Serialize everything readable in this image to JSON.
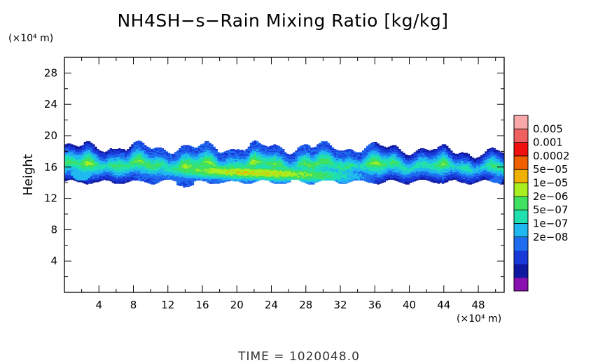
{
  "chart_data": {
    "type": "heatmap",
    "title": "NH4SH−s−Rain Mixing Ratio [kg/kg]",
    "ylabel": "Height",
    "xlabel": "",
    "x_unit": "(×10⁴ m)",
    "y_unit": "(×10⁴ m)",
    "xlim": [
      0,
      51
    ],
    "ylim": [
      0,
      30
    ],
    "x_ticks": [
      4,
      8,
      12,
      16,
      20,
      24,
      28,
      32,
      36,
      40,
      44,
      48
    ],
    "y_ticks": [
      4,
      8,
      12,
      16,
      20,
      24,
      28
    ],
    "x_tick_labels": [
      "4",
      "8",
      "12",
      "16",
      "20",
      "24",
      "28",
      "32",
      "36",
      "40",
      "44",
      "48"
    ],
    "y_tick_labels": [
      "4",
      "8",
      "12",
      "16",
      "20",
      "24",
      "28"
    ],
    "colorbar": {
      "labels": [
        "0.005",
        "0.001",
        "0.0002",
        "5e−05",
        "1e−05",
        "2e−06",
        "5e−07",
        "1e−07",
        "2e−08"
      ],
      "colors_bottom_to_top": [
        "#8a10b0",
        "#1018a0",
        "#1838d8",
        "#1f6cf0",
        "#20b8f0",
        "#20e0b0",
        "#40e060",
        "#a8ee20",
        "#f0b000",
        "#f06000",
        "#f01010",
        "#f06060",
        "#f8a8a8"
      ]
    },
    "field_band": {
      "x_range": [
        0,
        51
      ],
      "height_range": [
        13.4,
        19.6
      ],
      "core": {
        "x_range": [
          8,
          36
        ],
        "height_range": [
          14.5,
          16.5
        ],
        "max_level": "5e−05"
      }
    },
    "footer": "TIME  =  1020048.0"
  }
}
